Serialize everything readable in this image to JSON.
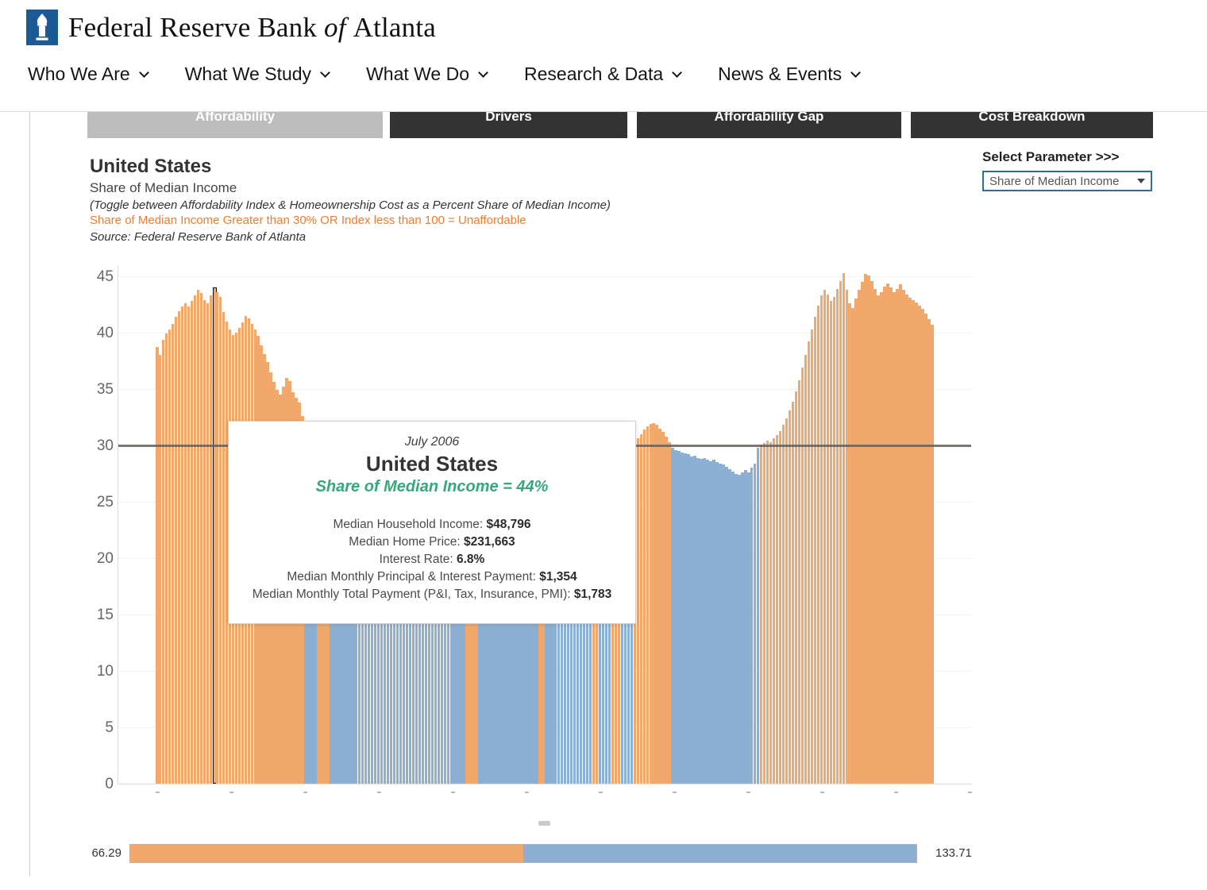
{
  "header": {
    "brand_pre": "Federal Reserve Bank",
    "brand_of": "of",
    "brand_city": "Atlanta"
  },
  "nav": {
    "items": [
      {
        "label": "Who We Are"
      },
      {
        "label": "What We Study"
      },
      {
        "label": "What We Do"
      },
      {
        "label": "Research & Data"
      },
      {
        "label": "News & Events"
      }
    ]
  },
  "tabs": [
    {
      "label": "Affordability",
      "active": true
    },
    {
      "label": "Drivers",
      "active": false
    },
    {
      "label": "Affordability Gap",
      "active": false
    },
    {
      "label": "Cost Breakdown",
      "active": false
    }
  ],
  "parameter": {
    "label": "Select Parameter >>>",
    "selected": "Share of Median Income"
  },
  "chart_header": {
    "title": "United States",
    "subtitle": "Share of Median Income",
    "toggle_note": "(Toggle between Affordability Index & Homeownership Cost as a Percent Share of Median Income)",
    "threshold_note": "Share of Median Income Greater than 30% OR Index less than 100  = Unaffordable",
    "source": "Source: Federal Reserve Bank of Atlanta"
  },
  "tooltip": {
    "date": "July 2006",
    "region": "United States",
    "headline": "Share of Median Income = 44%",
    "metrics": [
      {
        "label": "Median Household Income: ",
        "value": "$48,796"
      },
      {
        "label": "Median Home Price: ",
        "value": "$231,663"
      },
      {
        "label": "Interest Rate: ",
        "value": "6.8%"
      },
      {
        "label": "Median Monthly Principal & Interest Payment: ",
        "value": "$1,354"
      },
      {
        "label": "Median Monthly Total Payment (P&I, Tax, Insurance, PMI): ",
        "value": "$1,783"
      }
    ]
  },
  "slider": {
    "min_label": "66.29",
    "max_label": "133.71"
  },
  "colors": {
    "unaffordable_orange": "#F2A76B",
    "affordable_blue": "#8CAFD3",
    "threshold_gray": "#64605C",
    "headline_green": "#35A87C",
    "note_orange": "#ED7D31",
    "dropdown_border_blue": "#2E6DA4",
    "logo_blue": "#1C5A96",
    "tab_active_gray": "#BDBDBD",
    "tab_inactive_dark": "#333333"
  },
  "chart_data": {
    "type": "bar",
    "title": "United States — Share of Median Income",
    "xlabel": "",
    "ylabel": "Homeownership cost as percent share of median income",
    "x_start": "2005-01",
    "x_end": "2025-06",
    "x_freq": "monthly",
    "n_points": 246,
    "ylim": [
      0,
      46
    ],
    "yticks": [
      0,
      5,
      10,
      15,
      20,
      25,
      30,
      35,
      40,
      45
    ],
    "grid": "horizontal",
    "threshold_line": 30,
    "color_rule": "value > 30 → unaffordable (orange); value <= 30 → affordable (blue)",
    "selected_point": {
      "index": 18,
      "date": "2006-07",
      "label": "July 2006",
      "value": 44.0
    },
    "series": [
      {
        "name": "Share of Median Income",
        "unit": "%",
        "values": [
          38.7,
          38.0,
          39.4,
          39.9,
          40.3,
          40.8,
          41.4,
          41.9,
          42.3,
          42.6,
          42.3,
          42.8,
          43.3,
          43.8,
          43.5,
          42.9,
          42.6,
          43.3,
          44.0,
          43.6,
          43.2,
          41.8,
          41.0,
          40.3,
          39.8,
          40.0,
          40.4,
          40.9,
          41.5,
          41.3,
          40.8,
          40.3,
          39.7,
          38.9,
          38.1,
          37.4,
          36.5,
          35.6,
          34.9,
          34.5,
          35.2,
          36.0,
          35.7,
          34.7,
          34.2,
          33.8,
          32.6,
          29.8,
          29.5,
          29.8,
          29.9,
          30.3,
          30.5,
          30.4,
          30.2,
          29.8,
          29.4,
          29.0,
          28.7,
          28.5,
          28.2,
          28.0,
          27.8,
          27.9,
          28.0,
          27.8,
          27.6,
          27.4,
          27.3,
          27.5,
          27.6,
          27.4,
          27.2,
          27.0,
          26.9,
          27.1,
          27.3,
          27.2,
          27.0,
          26.8,
          26.9,
          27.1,
          27.3,
          27.5,
          27.7,
          27.9,
          28.1,
          28.3,
          28.5,
          28.6,
          28.4,
          28.6,
          28.8,
          29.0,
          29.2,
          29.4,
          29.6,
          29.8,
          30.2,
          30.4,
          30.3,
          30.1,
          29.8,
          29.6,
          29.4,
          29.2,
          29.0,
          28.9,
          28.8,
          28.7,
          28.9,
          29.1,
          29.3,
          29.2,
          29.0,
          28.9,
          29.1,
          29.3,
          29.5,
          29.7,
          29.9,
          30.1,
          30.2,
          29.9,
          29.7,
          29.5,
          29.3,
          29.2,
          29.4,
          29.6,
          29.8,
          29.9,
          29.7,
          29.5,
          29.4,
          29.6,
          29.8,
          29.9,
          30.1,
          30.2,
          29.9,
          29.7,
          29.8,
          29.9,
          30.1,
          30.2,
          30.1,
          29.8,
          29.7,
          29.9,
          30.0,
          30.2,
          30.6,
          31.0,
          31.4,
          31.7,
          31.9,
          32.0,
          31.8,
          31.5,
          31.2,
          30.8,
          30.3,
          29.8,
          29.6,
          29.5,
          29.4,
          29.3,
          29.2,
          29.0,
          29.1,
          28.9,
          28.8,
          28.9,
          28.7,
          28.6,
          28.7,
          28.5,
          28.4,
          28.3,
          28.1,
          27.9,
          27.7,
          27.5,
          27.4,
          27.6,
          27.8,
          27.6,
          28.0,
          28.4,
          29.8,
          30.1,
          30.2,
          30.4,
          30.3,
          30.6,
          30.9,
          31.3,
          31.8,
          32.4,
          33.1,
          33.9,
          34.8,
          35.8,
          36.9,
          38.0,
          39.2,
          40.3,
          41.4,
          42.4,
          43.3,
          43.8,
          43.4,
          42.8,
          43.2,
          43.9,
          44.6,
          45.3,
          43.8,
          42.6,
          42.2,
          43.0,
          43.8,
          44.5,
          45.2,
          45.1,
          44.6,
          43.9,
          43.3,
          43.6,
          44.1,
          44.4,
          44.0,
          43.6,
          43.9,
          44.3,
          43.8,
          43.4,
          43.1,
          42.9,
          42.7,
          42.4,
          42.1,
          41.7,
          41.2,
          40.7
        ]
      }
    ],
    "legend_gradient_bar": {
      "description": "Affordability index range legend below chart, orange-to-blue split at midpoint (index 100)",
      "min": 66.29,
      "max": 133.71
    }
  }
}
